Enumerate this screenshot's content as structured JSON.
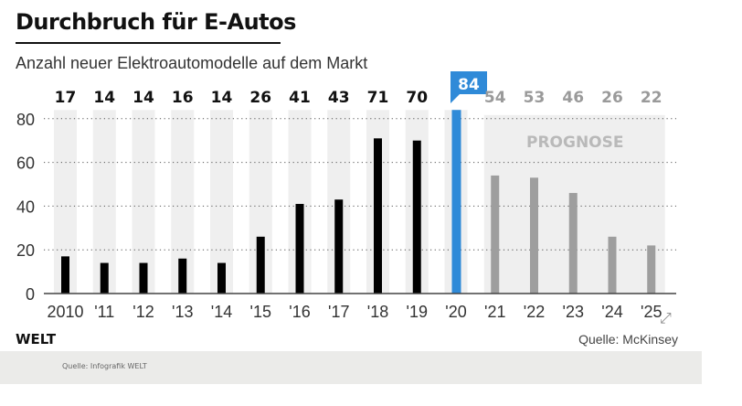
{
  "chart_data": {
    "type": "bar",
    "title": "Durchbruch für E-Autos",
    "subtitle": "Anzahl neuer Elektroautomodelle auf dem Markt",
    "categories": [
      "2010",
      "'11",
      "'12",
      "'13",
      "'14",
      "'15",
      "'16",
      "'17",
      "'18",
      "'19",
      "'20",
      "'21",
      "'22",
      "'23",
      "'24",
      "'25"
    ],
    "values": [
      17,
      14,
      14,
      16,
      14,
      26,
      41,
      43,
      71,
      70,
      84,
      54,
      53,
      46,
      26,
      22
    ],
    "series_type": [
      "actual",
      "actual",
      "actual",
      "actual",
      "actual",
      "actual",
      "actual",
      "actual",
      "actual",
      "actual",
      "highlight",
      "forecast",
      "forecast",
      "forecast",
      "forecast",
      "forecast"
    ],
    "yticks": [
      0,
      20,
      40,
      60,
      80
    ],
    "ylim": [
      0,
      80
    ],
    "grid": "dotted horizontal",
    "annotation": "PROGNOSE",
    "colors": {
      "actual": "#000000",
      "highlight": "#2f8ad8",
      "forecast": "#9e9e9e",
      "band": "#efefef",
      "actual_label": "#111111",
      "forecast_label": "#9a9a9a"
    }
  },
  "footer": {
    "logo": "WELT",
    "source": "Quelle: McKinsey",
    "credit": "Quelle: Infografik WELT"
  }
}
